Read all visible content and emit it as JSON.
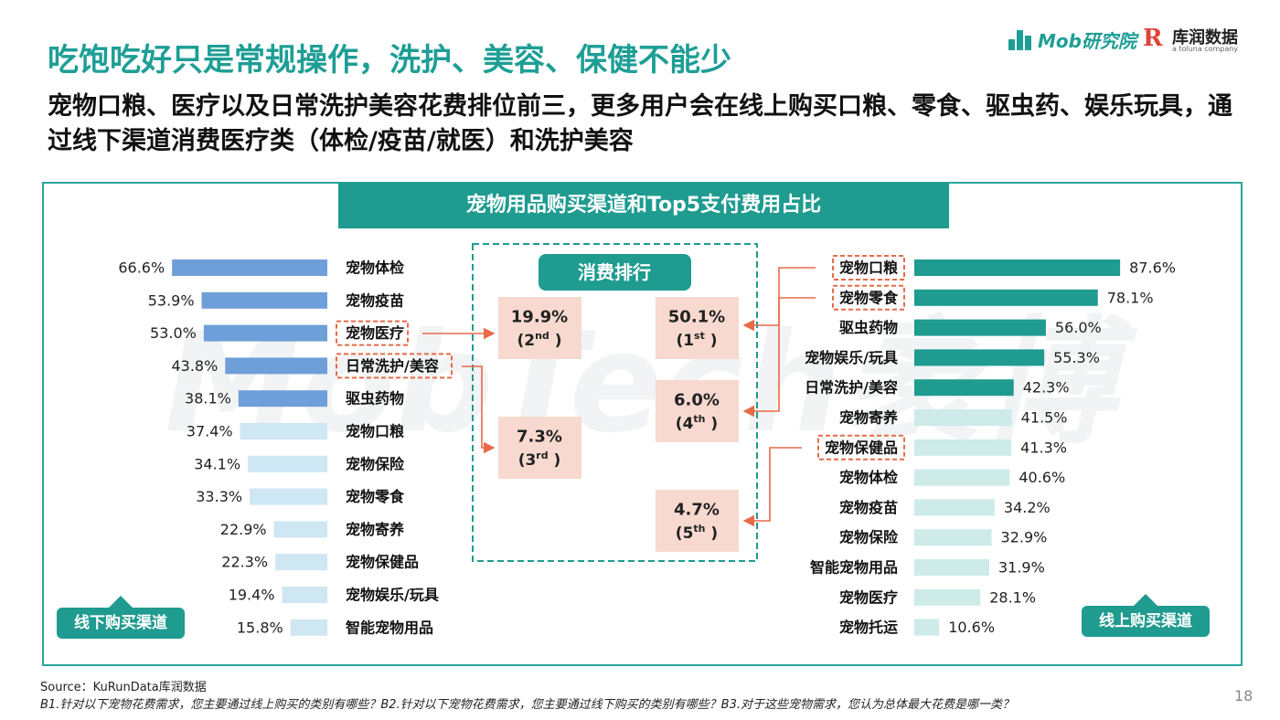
{
  "title": "吃饱吃好只是常规操作，洗护、美容、保健不能少",
  "subtitle": "宠物口粮、医疗以及日常洗护美容花费排位前三，更多用户会在线上购买口粮、零食、驱虫药、娱乐玩具，通过线下渠道消费医疗类（体检/疫苗/就医）和洗护美容",
  "logos": {
    "mob": "Mob研究院",
    "kurun": "库润数据",
    "kurun_sub": "a toluna company"
  },
  "watermark": "MobTech袤博",
  "source": "Source：KuRunData库润数据",
  "note": "B1.针对以下宠物花费需求，您主要通过线上购买的类别有哪些？B2.针对以下宠物花费需求，您主要通过线下购买的类别有哪些？B3.对于这些宠物需求，您认为总体最大花费是哪一类？",
  "page_number": "18",
  "colors": {
    "teal": "#1f9b90",
    "offline_dark": "#6f9fd8",
    "offline_light": "#cfe6f3",
    "online_dark": "#1f9b90",
    "online_light": "#cdebe8",
    "highlight": "#e86a48",
    "rank_box": "#f7d9cf"
  },
  "chart_data": {
    "type": "bar",
    "title": "宠物用品购买渠道和Top5支付费用占比",
    "offline": {
      "label": "线下购买渠道",
      "unit": "%",
      "categories": [
        "宠物体检",
        "宠物疫苗",
        "宠物医疗",
        "日常洗护/美容",
        "驱虫药物",
        "宠物口粮",
        "宠物保险",
        "宠物零食",
        "宠物寄养",
        "宠物保健品",
        "宠物娱乐/玩具",
        "智能宠物用品"
      ],
      "values": [
        66.6,
        53.9,
        53.0,
        43.8,
        38.1,
        37.4,
        34.1,
        33.3,
        22.9,
        22.3,
        19.4,
        15.8
      ],
      "highlight_count": 5,
      "boxed": [
        "宠物医疗",
        "日常洗护/美容"
      ]
    },
    "online": {
      "label": "线上购买渠道",
      "unit": "%",
      "categories": [
        "宠物口粮",
        "宠物零食",
        "驱虫药物",
        "宠物娱乐/玩具",
        "日常洗护/美容",
        "宠物寄养",
        "宠物保健品",
        "宠物体检",
        "宠物疫苗",
        "宠物保险",
        "智能宠物用品",
        "宠物医疗",
        "宠物托运"
      ],
      "values": [
        87.6,
        78.1,
        56.0,
        55.3,
        42.3,
        41.5,
        41.3,
        40.6,
        34.2,
        32.9,
        31.9,
        28.1,
        10.6
      ],
      "highlight_count": 5,
      "boxed": [
        "宠物口粮",
        "宠物零食",
        "宠物保健品"
      ]
    },
    "ranking": {
      "label": "消费排行",
      "items": [
        {
          "value": "50.1%",
          "rank": "1",
          "suffix": "st"
        },
        {
          "value": "19.9%",
          "rank": "2",
          "suffix": "nd"
        },
        {
          "value": "7.3%",
          "rank": "3",
          "suffix": "rd"
        },
        {
          "value": "6.0%",
          "rank": "4",
          "suffix": "th"
        },
        {
          "value": "4.7%",
          "rank": "5",
          "suffix": "th"
        }
      ]
    }
  }
}
